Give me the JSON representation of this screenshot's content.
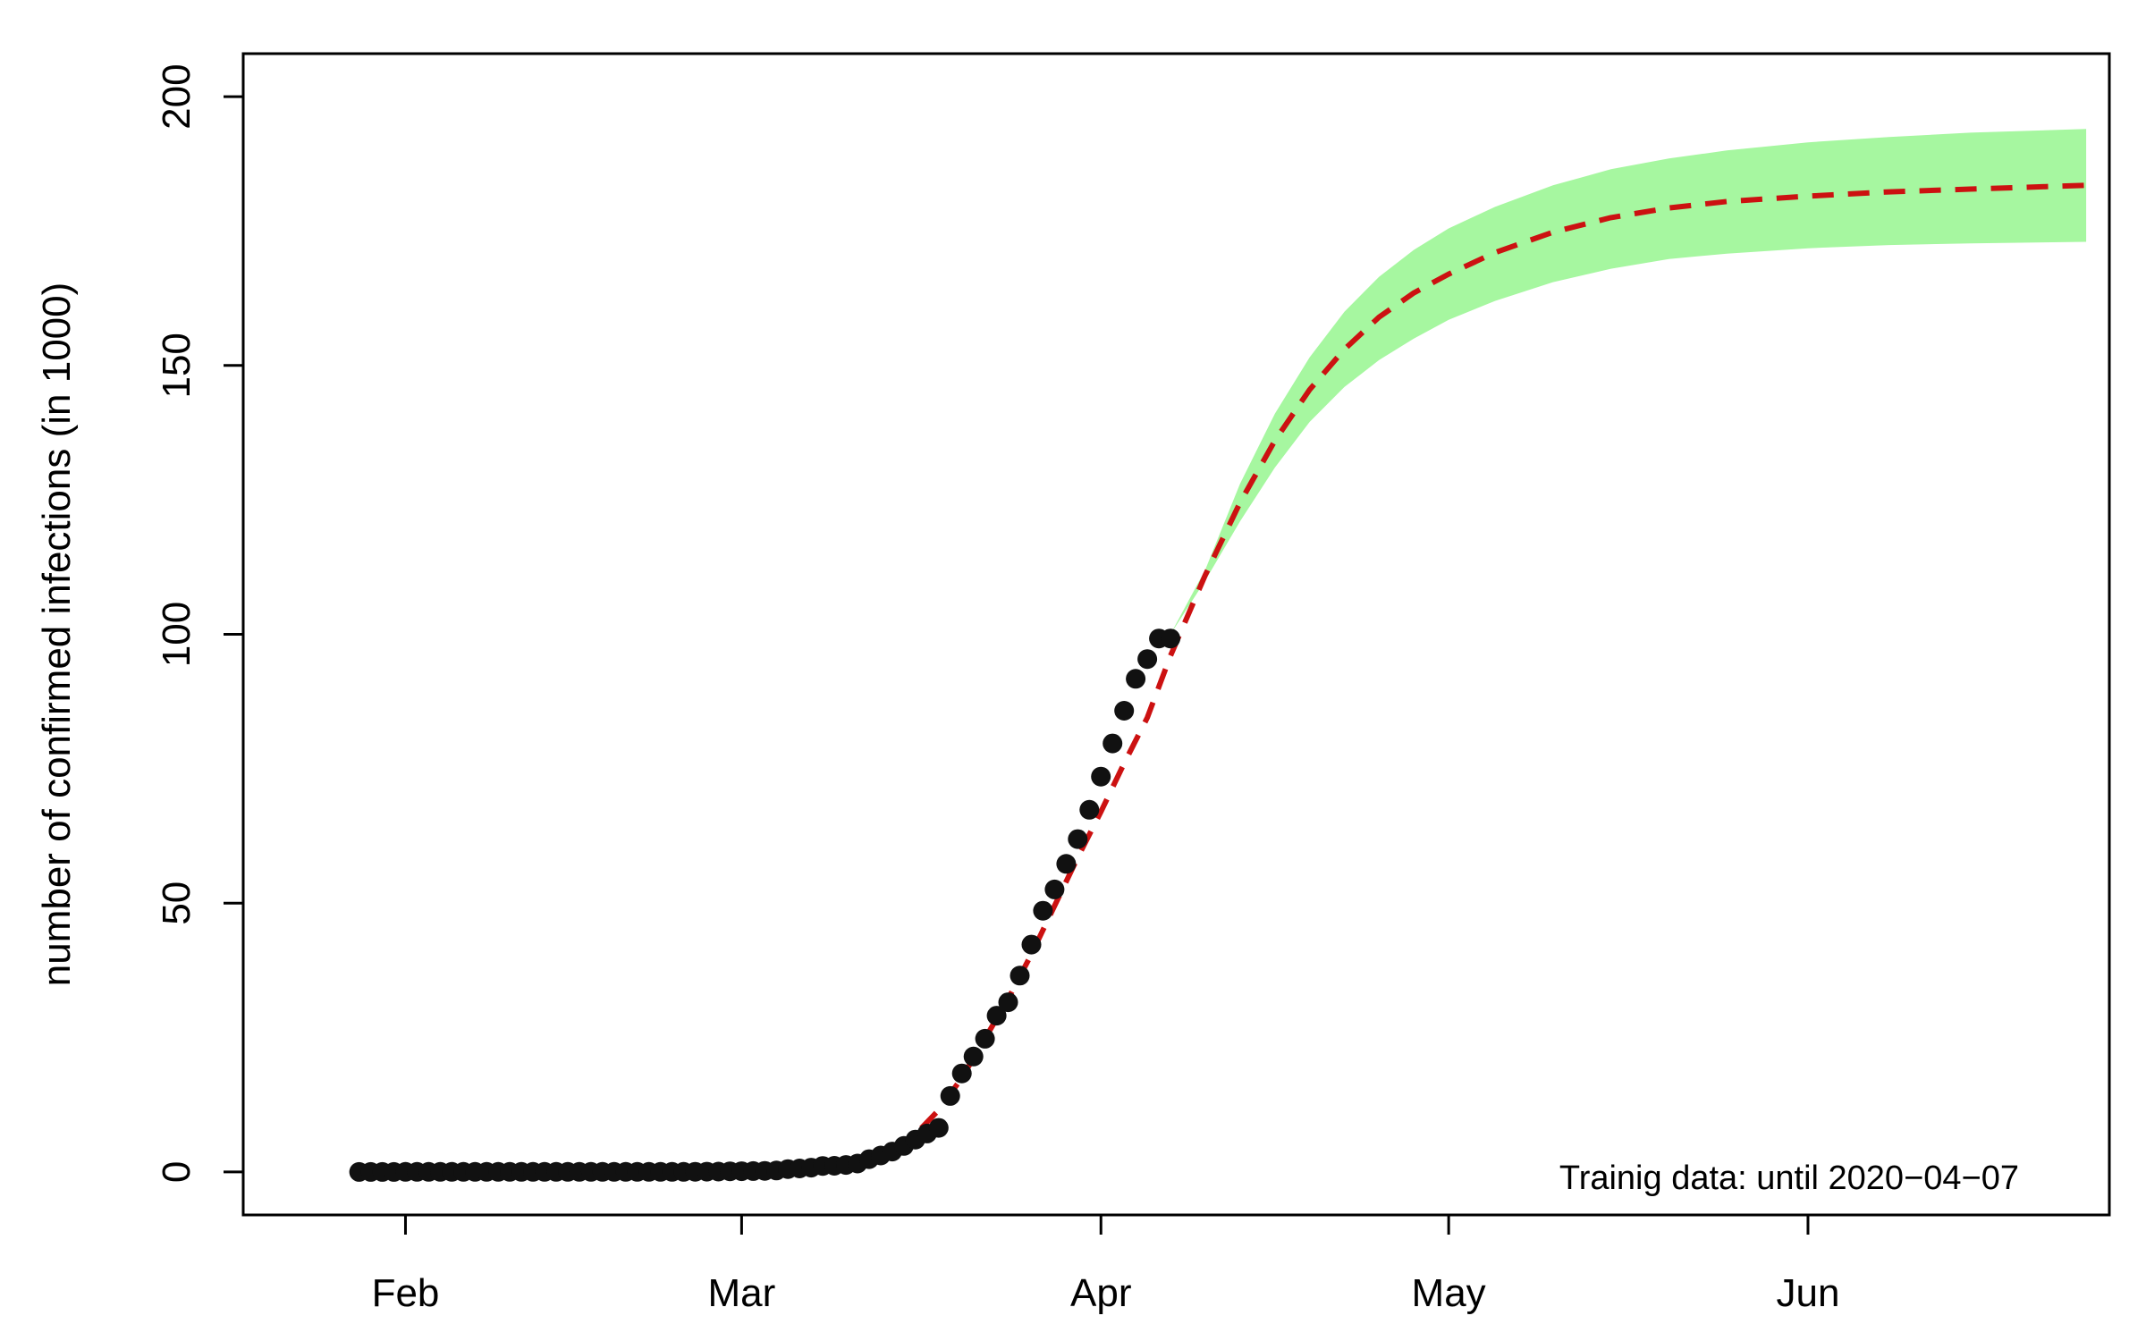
{
  "chart_data": {
    "type": "line",
    "title": "",
    "xlabel": "",
    "ylabel": "number of confirmed infections (in 1000)",
    "annotation": "Trainig data: until 2020−04−07",
    "x_axis": {
      "type": "date",
      "range": [
        "2020-01-18",
        "2020-06-27"
      ],
      "ticks": [
        {
          "date": "2020-02-01",
          "label": "Feb"
        },
        {
          "date": "2020-03-01",
          "label": "Mar"
        },
        {
          "date": "2020-04-01",
          "label": "Apr"
        },
        {
          "date": "2020-05-01",
          "label": "May"
        },
        {
          "date": "2020-06-01",
          "label": "Jun"
        }
      ]
    },
    "y_axis": {
      "range": [
        -8,
        208
      ],
      "ticks": [
        {
          "value": 0,
          "label": "0"
        },
        {
          "value": 50,
          "label": "50"
        },
        {
          "value": 100,
          "label": "100"
        },
        {
          "value": 150,
          "label": "150"
        },
        {
          "value": 200,
          "label": "200"
        }
      ]
    },
    "grid": false,
    "legend": "none",
    "colors": {
      "points": "#111111",
      "fit": "#cc1111",
      "band": "#a6f7a0",
      "axis": "#000000"
    },
    "series": [
      {
        "kind": "points",
        "x": [
          "2020-01-28",
          "2020-01-29",
          "2020-01-30",
          "2020-01-31",
          "2020-02-01",
          "2020-02-02",
          "2020-02-03",
          "2020-02-04",
          "2020-02-05",
          "2020-02-06",
          "2020-02-07",
          "2020-02-08",
          "2020-02-09",
          "2020-02-10",
          "2020-02-11",
          "2020-02-12",
          "2020-02-13",
          "2020-02-14",
          "2020-02-15",
          "2020-02-16",
          "2020-02-17",
          "2020-02-18",
          "2020-02-19",
          "2020-02-20",
          "2020-02-21",
          "2020-02-22",
          "2020-02-23",
          "2020-02-24",
          "2020-02-25",
          "2020-02-26",
          "2020-02-27",
          "2020-02-28",
          "2020-02-29",
          "2020-03-01",
          "2020-03-02",
          "2020-03-03",
          "2020-03-04",
          "2020-03-05",
          "2020-03-06",
          "2020-03-07",
          "2020-03-08",
          "2020-03-09",
          "2020-03-10",
          "2020-03-11",
          "2020-03-12",
          "2020-03-13",
          "2020-03-14",
          "2020-03-15",
          "2020-03-16",
          "2020-03-17",
          "2020-03-18",
          "2020-03-19",
          "2020-03-20",
          "2020-03-21",
          "2020-03-22",
          "2020-03-23",
          "2020-03-24",
          "2020-03-25",
          "2020-03-26",
          "2020-03-27",
          "2020-03-28",
          "2020-03-29",
          "2020-03-30",
          "2020-03-31",
          "2020-04-01",
          "2020-04-02",
          "2020-04-03",
          "2020-04-04",
          "2020-04-05",
          "2020-04-06",
          "2020-04-07"
        ],
        "y": [
          0.004,
          0.004,
          0.004,
          0.005,
          0.008,
          0.01,
          0.012,
          0.012,
          0.012,
          0.013,
          0.013,
          0.014,
          0.014,
          0.014,
          0.016,
          0.016,
          0.016,
          0.016,
          0.016,
          0.016,
          0.016,
          0.016,
          0.016,
          0.016,
          0.016,
          0.016,
          0.016,
          0.016,
          0.018,
          0.026,
          0.053,
          0.066,
          0.117,
          0.129,
          0.157,
          0.196,
          0.262,
          0.534,
          0.639,
          0.795,
          1.112,
          1.139,
          1.296,
          1.567,
          2.369,
          3.062,
          3.795,
          4.838,
          6.012,
          7.156,
          8.198,
          14.138,
          18.323,
          21.463,
          24.774,
          29.056,
          31.554,
          36.508,
          42.288,
          48.582,
          52.547,
          57.298,
          61.913,
          67.366,
          73.522,
          79.696,
          85.778,
          91.714,
          95.391,
          99.225,
          99.225
        ]
      },
      {
        "kind": "fit",
        "style": "dashed",
        "x": [
          "2020-01-28",
          "2020-02-05",
          "2020-02-15",
          "2020-02-25",
          "2020-03-01",
          "2020-03-05",
          "2020-03-08",
          "2020-03-10",
          "2020-03-12",
          "2020-03-14",
          "2020-03-16",
          "2020-03-18",
          "2020-03-20",
          "2020-03-22",
          "2020-03-24",
          "2020-03-26",
          "2020-03-28",
          "2020-03-30",
          "2020-04-01",
          "2020-04-03",
          "2020-04-05",
          "2020-04-07",
          "2020-04-10",
          "2020-04-13",
          "2020-04-16",
          "2020-04-19",
          "2020-04-22",
          "2020-04-25",
          "2020-04-28",
          "2020-05-01",
          "2020-05-05",
          "2020-05-10",
          "2020-05-15",
          "2020-05-20",
          "2020-05-25",
          "2020-06-01",
          "2020-06-08",
          "2020-06-15",
          "2020-06-25"
        ],
        "y": [
          0,
          0,
          0,
          0,
          0,
          0.3,
          0.8,
          1.3,
          2.3,
          4.3,
          7.0,
          11.5,
          17.5,
          24.8,
          32.2,
          40.5,
          49.5,
          58.5,
          67.0,
          76.0,
          84.5,
          96.0,
          111.0,
          124.5,
          136.0,
          145.5,
          153.0,
          159.0,
          163.5,
          167.0,
          171.0,
          174.8,
          177.5,
          179.3,
          180.5,
          181.5,
          182.3,
          182.8,
          183.5
        ]
      },
      {
        "kind": "band",
        "x": [
          "2020-04-07",
          "2020-04-10",
          "2020-04-13",
          "2020-04-16",
          "2020-04-19",
          "2020-04-22",
          "2020-04-25",
          "2020-04-28",
          "2020-05-01",
          "2020-05-05",
          "2020-05-10",
          "2020-05-15",
          "2020-05-20",
          "2020-05-25",
          "2020-06-01",
          "2020-06-08",
          "2020-06-15",
          "2020-06-25"
        ],
        "lower": [
          100.0,
          110.0,
          121.0,
          131.0,
          139.5,
          146.0,
          151.0,
          155.0,
          158.5,
          162.0,
          165.5,
          168.0,
          169.8,
          170.8,
          171.8,
          172.4,
          172.7,
          173.0
        ],
        "upper": [
          100.0,
          112.0,
          128.0,
          141.0,
          151.5,
          160.0,
          166.5,
          171.5,
          175.5,
          179.5,
          183.5,
          186.5,
          188.5,
          190.0,
          191.5,
          192.5,
          193.3,
          194.0
        ]
      }
    ]
  }
}
